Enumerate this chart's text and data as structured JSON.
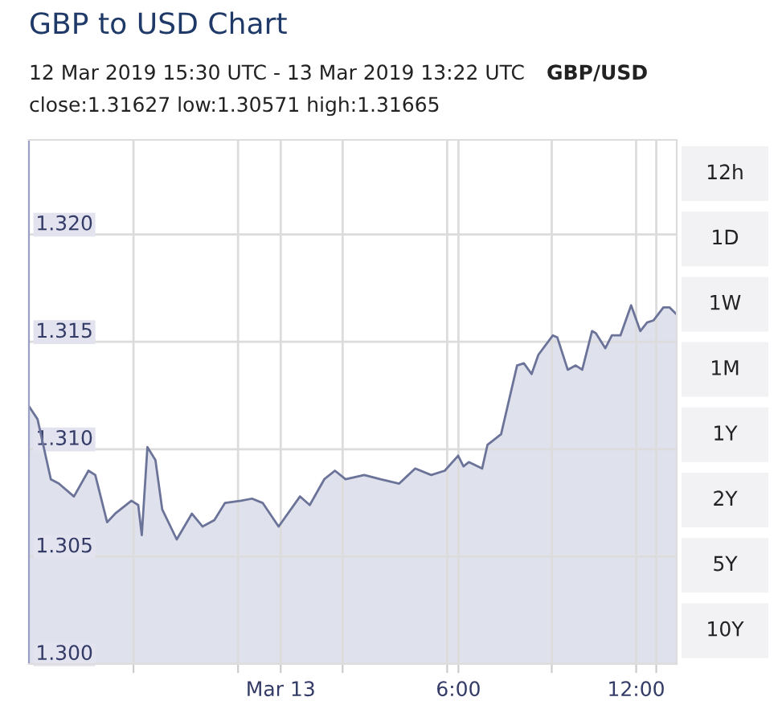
{
  "chart_data": {
    "type": "area",
    "title": "GBP to USD Chart",
    "subtitle": "12 Mar 2019 15:30 UTC - 13 Mar 2019 13:22 UTC",
    "annotations": [
      "GBP/USD",
      "close:1.31627 low:1.30571 high:1.31665",
      "12h",
      "1D",
      "1W",
      "1M",
      "1Y",
      "2Y",
      "5Y",
      "10Y"
    ],
    "series": [
      {
        "color": "#6b7399",
        "x": [
          -8.5,
          -8.21,
          -7.76,
          -7.49,
          -6.98,
          -6.49,
          -6.26,
          -5.86,
          -5.59,
          -5.04,
          -4.81,
          -4.69,
          -4.5,
          -4.23,
          -4.0,
          -3.51,
          -3.0,
          -2.64,
          -2.24,
          -1.88,
          -1.34,
          -0.97,
          -0.61,
          -0.07,
          0.65,
          0.98,
          1.47,
          1.83,
          2.19,
          2.82,
          3.37,
          4.0,
          4.54,
          5.08,
          5.54,
          5.99,
          6.17,
          6.35,
          6.8,
          6.98,
          7.44,
          7.98,
          8.21,
          8.47,
          8.7,
          9.19,
          9.34,
          9.69,
          9.96,
          10.18,
          10.51,
          10.64,
          10.96,
          11.18,
          11.47,
          11.83,
          12.14,
          12.37,
          12.59,
          12.92,
          13.13,
          13.35
        ],
        "values": [
          1.312,
          1.3114,
          1.3086,
          1.3084,
          1.3078,
          1.309,
          1.3088,
          1.3066,
          1.307,
          1.3076,
          1.3074,
          1.306,
          1.3101,
          1.3095,
          1.3072,
          1.3058,
          1.307,
          1.3064,
          1.3067,
          1.3075,
          1.3076,
          1.3077,
          1.3075,
          1.3064,
          1.3078,
          1.3074,
          1.3086,
          1.309,
          1.3086,
          1.3088,
          1.3086,
          1.3084,
          1.3091,
          1.3088,
          1.309,
          1.3097,
          1.3092,
          1.3094,
          1.3091,
          1.3102,
          1.3107,
          1.3139,
          1.314,
          1.3135,
          1.3144,
          1.3153,
          1.3152,
          1.3137,
          1.3139,
          1.3137,
          1.3155,
          1.3154,
          1.3147,
          1.3153,
          1.3153,
          1.3167,
          1.3155,
          1.3159,
          1.316,
          1.3166,
          1.3166,
          1.3163
        ]
      }
    ],
    "xlim": [
      -8.5,
      13.37
    ],
    "xticks": [
      {
        "value": -4.97,
        "label": null
      },
      {
        "value": -1.44,
        "label": null
      },
      {
        "value": 0,
        "label": "Mar 13"
      },
      {
        "value": 2.09,
        "label": null
      },
      {
        "value": 5.62,
        "label": null
      },
      {
        "value": 6,
        "label": "6:00"
      },
      {
        "value": 9.15,
        "label": null
      },
      {
        "value": 12,
        "label": "12:00"
      },
      {
        "value": 12.68,
        "label": null
      }
    ],
    "ylim": [
      1.3,
      1.3244
    ],
    "yticks": [
      {
        "value": 1.3,
        "label": "1.300"
      },
      {
        "value": 1.305,
        "label": "1.305"
      },
      {
        "value": 1.31,
        "label": "1.310"
      },
      {
        "value": 1.315,
        "label": "1.315"
      },
      {
        "value": 1.32,
        "label": "1.320"
      }
    ],
    "grid": true,
    "legend": false
  }
}
